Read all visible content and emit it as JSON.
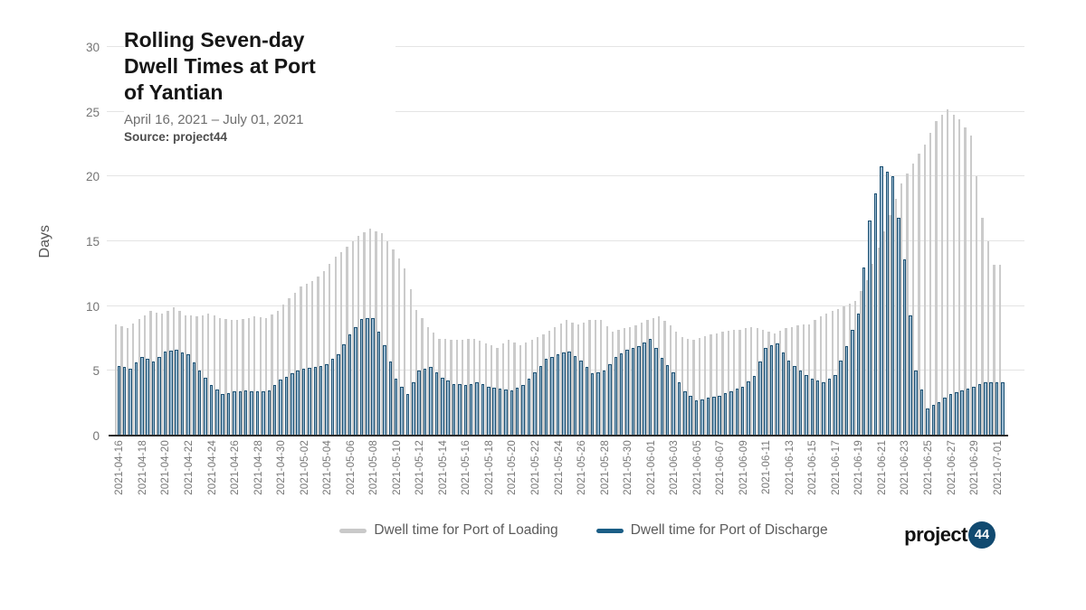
{
  "header": {
    "title": "Rolling Seven-day Dwell Times at Port of Yantian",
    "subtitle": "April 16, 2021 – July 01, 2021",
    "source": "Source: project44"
  },
  "y_axis": {
    "label": "Days"
  },
  "legend": {
    "items": [
      {
        "label": "Dwell time for Port of Loading",
        "color": "#c9c9c9"
      },
      {
        "label": "Dwell time for Port of Discharge",
        "color": "#1b5e86"
      }
    ]
  },
  "branding": {
    "wordmark": "project",
    "badge": "44",
    "badge_color": "#114a70"
  },
  "chart_data": {
    "type": "bar",
    "title": "Rolling Seven-day Dwell Times at Port of Yantian",
    "date_range": "April 16, 2021 – July 01, 2021",
    "source": "project44",
    "ylabel": "Days",
    "ylim": [
      0,
      30
    ],
    "yticks": [
      0,
      5,
      10,
      15,
      20,
      25,
      30
    ],
    "grid": true,
    "legend_position": "bottom",
    "x_tick_interval": 2,
    "x": [
      "2021-04-16",
      "2021-04-17",
      "2021-04-18",
      "2021-04-19",
      "2021-04-20",
      "2021-04-21",
      "2021-04-22",
      "2021-04-23",
      "2021-04-24",
      "2021-04-25",
      "2021-04-26",
      "2021-04-27",
      "2021-04-28",
      "2021-04-29",
      "2021-04-30",
      "2021-05-01",
      "2021-05-02",
      "2021-05-03",
      "2021-05-04",
      "2021-05-05",
      "2021-05-06",
      "2021-05-07",
      "2021-05-08",
      "2021-05-09",
      "2021-05-10",
      "2021-05-11",
      "2021-05-12",
      "2021-05-13",
      "2021-05-14",
      "2021-05-15",
      "2021-05-16",
      "2021-05-17",
      "2021-05-18",
      "2021-05-19",
      "2021-05-20",
      "2021-05-21",
      "2021-05-22",
      "2021-05-23",
      "2021-05-24",
      "2021-05-25",
      "2021-05-26",
      "2021-05-27",
      "2021-05-28",
      "2021-05-29",
      "2021-05-30",
      "2021-05-31",
      "2021-06-01",
      "2021-06-02",
      "2021-06-03",
      "2021-06-04",
      "2021-06-05",
      "2021-06-06",
      "2021-06-07",
      "2021-06-08",
      "2021-06-09",
      "2021-06-10",
      "2021-06-11",
      "2021-06-12",
      "2021-06-13",
      "2021-06-14",
      "2021-06-15",
      "2021-06-16",
      "2021-06-17",
      "2021-06-18",
      "2021-06-19",
      "2021-06-20",
      "2021-06-21",
      "2021-06-22",
      "2021-06-23",
      "2021-06-24",
      "2021-06-25",
      "2021-06-26",
      "2021-06-27",
      "2021-06-28",
      "2021-06-29",
      "2021-06-30",
      "2021-07-01"
    ],
    "series": [
      {
        "name": "Dwell time for Port of Loading",
        "color": "#cbcbcb",
        "values": [
          8.6,
          8.3,
          9.0,
          9.6,
          9.4,
          9.9,
          9.3,
          9.2,
          9.4,
          9.1,
          8.9,
          9.0,
          9.2,
          9.1,
          9.6,
          10.6,
          11.5,
          11.9,
          12.7,
          13.8,
          14.6,
          15.4,
          16.0,
          15.6,
          14.4,
          12.9,
          9.7,
          8.4,
          7.5,
          7.4,
          7.4,
          7.5,
          7.1,
          6.8,
          7.4,
          7.0,
          7.4,
          7.8,
          8.4,
          8.9,
          8.6,
          8.9,
          8.9,
          8.0,
          8.3,
          8.5,
          8.9,
          9.2,
          8.5,
          7.6,
          7.4,
          7.7,
          7.9,
          8.1,
          8.2,
          8.4,
          8.2,
          7.9,
          8.3,
          8.5,
          8.6,
          9.2,
          9.6,
          10.0,
          10.4,
          12.0,
          14.5,
          17.0,
          19.5,
          21.0,
          22.5,
          24.3,
          25.2,
          24.4,
          23.2,
          16.8,
          13.2
        ]
      },
      {
        "name": "Dwell time for Port of Discharge",
        "fill": "#9bbbd2",
        "edge": "#1d5173",
        "values": [
          5.4,
          5.2,
          6.1,
          5.7,
          6.5,
          6.6,
          6.3,
          5.0,
          3.9,
          3.2,
          3.4,
          3.5,
          3.4,
          3.5,
          4.3,
          4.8,
          5.2,
          5.3,
          5.5,
          6.3,
          7.8,
          9.0,
          9.1,
          7.0,
          4.4,
          3.2,
          5.0,
          5.3,
          4.5,
          4.0,
          3.9,
          4.1,
          3.8,
          3.6,
          3.5,
          3.9,
          4.9,
          5.9,
          6.3,
          6.5,
          5.8,
          4.8,
          5.0,
          6.1,
          6.6,
          6.9,
          7.5,
          6.0,
          4.9,
          3.4,
          2.7,
          2.9,
          3.1,
          3.4,
          3.8,
          4.6,
          6.8,
          7.1,
          5.8,
          5.0,
          4.4,
          4.1,
          4.7,
          6.9,
          9.4,
          16.6,
          20.8,
          20.0,
          13.6,
          5.0,
          2.1,
          2.6,
          3.2,
          3.5,
          3.8,
          4.1,
          4.1
        ]
      }
    ]
  }
}
